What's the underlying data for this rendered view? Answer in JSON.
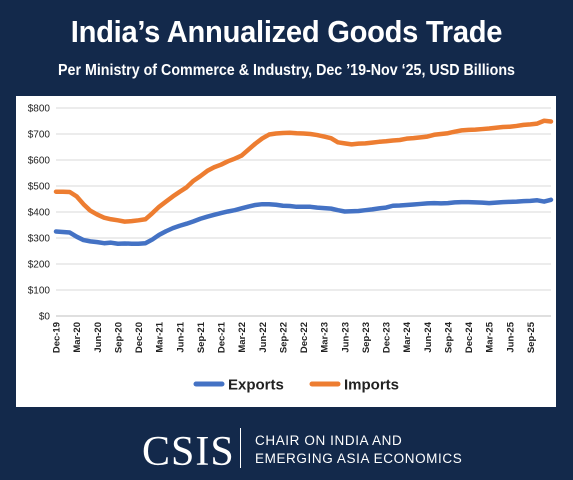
{
  "header": {
    "title": "India’s Annualized Goods Trade",
    "subtitle": "Per Ministry of Commerce & Industry, Dec ’19-Nov ‘25, USD Billions"
  },
  "footer": {
    "logo": "CSIS",
    "org_line1": "CHAIR ON INDIA AND",
    "org_line2": "EMERGING ASIA ECONOMICS"
  },
  "colors": {
    "background": "#13294b",
    "exports": "#4472c4",
    "imports": "#ed7d31",
    "grid": "#d9d9d9"
  },
  "chart_data": {
    "type": "line",
    "title": "India’s Annualized Goods Trade",
    "subtitle": "Per Ministry of Commerce & Industry, Dec ’19-Nov ‘25, USD Billions",
    "xlabel": "",
    "ylabel": "",
    "ylim": [
      0,
      800
    ],
    "y_ticks": [
      "$0",
      "$100",
      "$200",
      "$300",
      "$400",
      "$500",
      "$600",
      "$700",
      "$800"
    ],
    "x_ticks": [
      "Dec-19",
      "Mar-20",
      "Jun-20",
      "Sep-20",
      "Dec-20",
      "Mar-21",
      "Jun-21",
      "Sep-21",
      "Dec-21",
      "Mar-22",
      "Jun-22",
      "Sep-22",
      "Dec-22",
      "Mar-23",
      "Jun-23",
      "Sep-23",
      "Dec-23",
      "Mar-24",
      "Jun-24",
      "Sep-24",
      "Dec-24",
      "Mar-25",
      "Jun-25",
      "Sep-25"
    ],
    "grid": true,
    "legend_position": "bottom",
    "series": [
      {
        "name": "Exports",
        "values": [
          325,
          323,
          321,
          305,
          292,
          287,
          284,
          280,
          282,
          278,
          279,
          278,
          278,
          280,
          294,
          312,
          326,
          338,
          347,
          355,
          364,
          374,
          382,
          389,
          396,
          402,
          407,
          414,
          421,
          427,
          430,
          430,
          428,
          424,
          423,
          420,
          420,
          420,
          417,
          415,
          413,
          407,
          402,
          403,
          404,
          407,
          410,
          414,
          417,
          424,
          425,
          427,
          429,
          431,
          433,
          434,
          433,
          434,
          437,
          438,
          438,
          437,
          436,
          434,
          436,
          438,
          439,
          440,
          442,
          443,
          445,
          440,
          447
        ]
      },
      {
        "name": "Imports",
        "values": [
          478,
          478,
          477,
          460,
          430,
          405,
          390,
          378,
          372,
          368,
          363,
          365,
          368,
          372,
          395,
          420,
          440,
          460,
          478,
          495,
          520,
          538,
          558,
          572,
          582,
          595,
          605,
          617,
          640,
          663,
          683,
          698,
          702,
          704,
          705,
          703,
          702,
          700,
          696,
          690,
          684,
          668,
          664,
          660,
          663,
          664,
          667,
          670,
          672,
          675,
          677,
          682,
          684,
          687,
          690,
          697,
          700,
          703,
          709,
          714,
          716,
          717,
          719,
          721,
          724,
          727,
          728,
          731,
          735,
          737,
          740,
          751,
          748
        ]
      }
    ]
  }
}
